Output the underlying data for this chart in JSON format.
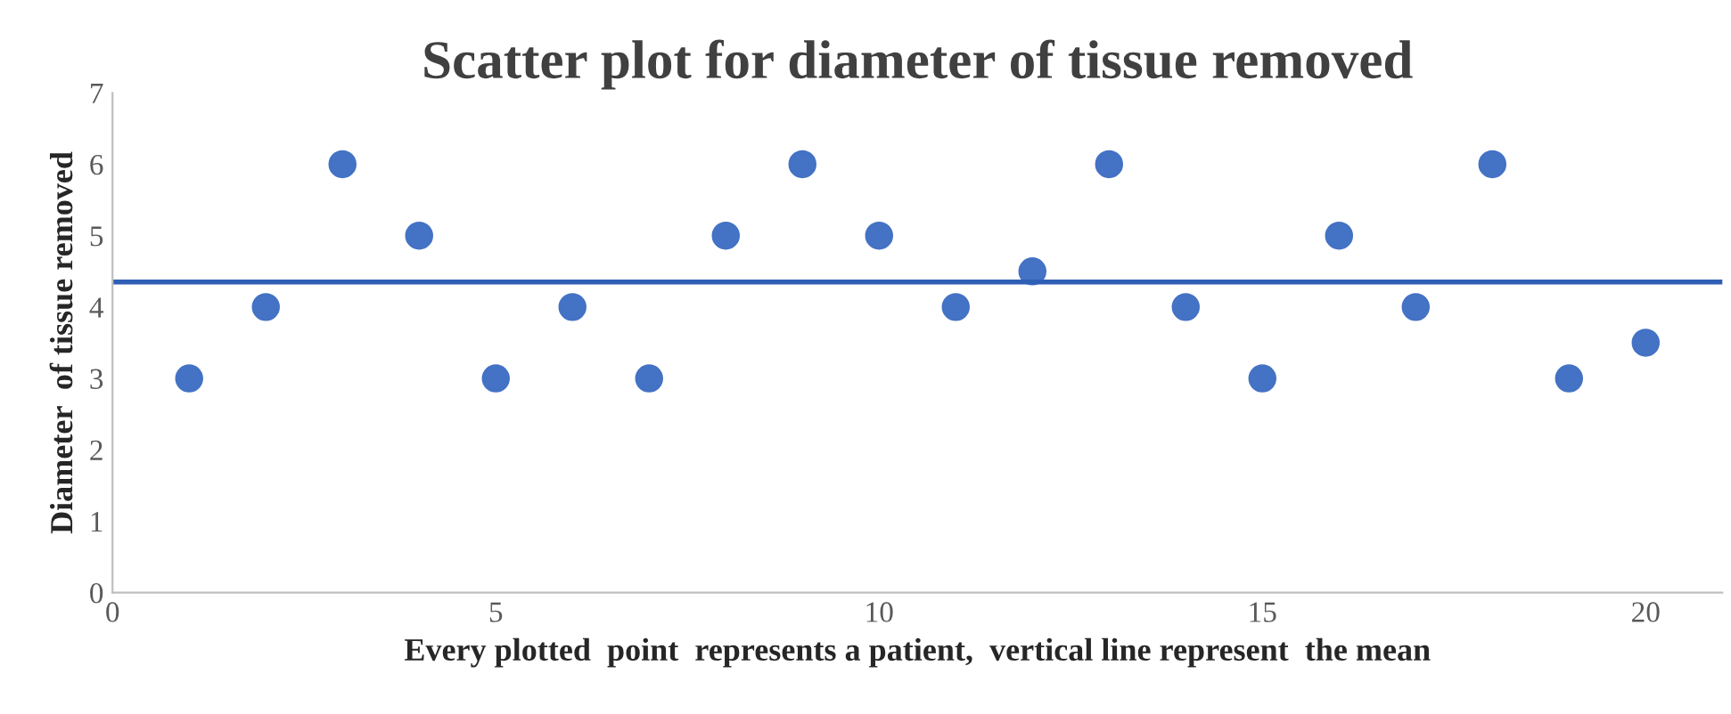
{
  "chart_data": {
    "type": "scatter",
    "title": "Scatter plot for diameter of tissue removed",
    "xlabel": "Every plotted  point  represents a patient,  vertical line represent  the mean",
    "ylabel": "Diameter  of tissue removed",
    "x": [
      1,
      2,
      3,
      4,
      5,
      6,
      7,
      8,
      9,
      10,
      11,
      12,
      13,
      14,
      15,
      16,
      17,
      18,
      19,
      20
    ],
    "series": [
      {
        "color": "#4472c4",
        "values": [
          3,
          4,
          6,
          5,
          3,
          4,
          3,
          5,
          6,
          5,
          4,
          4.5,
          6,
          4,
          3,
          5,
          4,
          6,
          3,
          3.5
        ]
      }
    ],
    "xlim": [
      0,
      21
    ],
    "xticks": [
      0,
      5,
      10,
      15,
      20
    ],
    "ylim": [
      0,
      7
    ],
    "yticks": [
      0,
      1,
      2,
      3,
      4,
      5,
      6,
      7
    ],
    "ref_lines": [
      {
        "axis": "y",
        "value": 4.35,
        "color": "#2e5fb5"
      }
    ],
    "grid": false,
    "marker": "circle",
    "legend": false
  }
}
